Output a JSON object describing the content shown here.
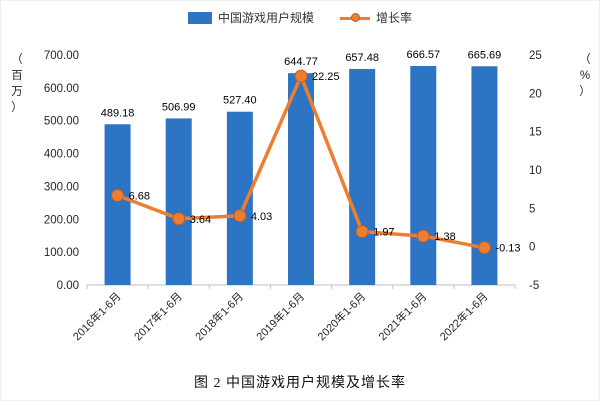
{
  "figure": {
    "caption": "图 2 中国游戏用户规模及增长率"
  },
  "chart_data": {
    "type": "bar+line combo",
    "categories": [
      "2016年1-6月",
      "2017年1-6月",
      "2018年1-6月",
      "2019年1-6月",
      "2020年1-6月",
      "2021年1-6月",
      "2022年1-6月"
    ],
    "series": [
      {
        "name": "中国游戏用户规模",
        "type": "bar",
        "axis": "left",
        "color": "#2E74C4",
        "values": [
          489.18,
          506.99,
          527.4,
          644.77,
          657.48,
          666.57,
          665.69
        ]
      },
      {
        "name": "增长率",
        "type": "line",
        "axis": "right",
        "color": "#ED7D31",
        "marker_stroke": "#C05F1E",
        "values": [
          6.68,
          3.64,
          4.03,
          22.25,
          1.97,
          1.38,
          -0.13
        ]
      }
    ],
    "left_axis": {
      "unit": "（百万）",
      "min": 0,
      "max": 700,
      "step": 100,
      "decimals": 2
    },
    "right_axis": {
      "unit": "（%）",
      "min": -5,
      "max": 25,
      "step": 5,
      "decimals": 0
    },
    "legend_position": "top",
    "grid": false,
    "title": ""
  }
}
